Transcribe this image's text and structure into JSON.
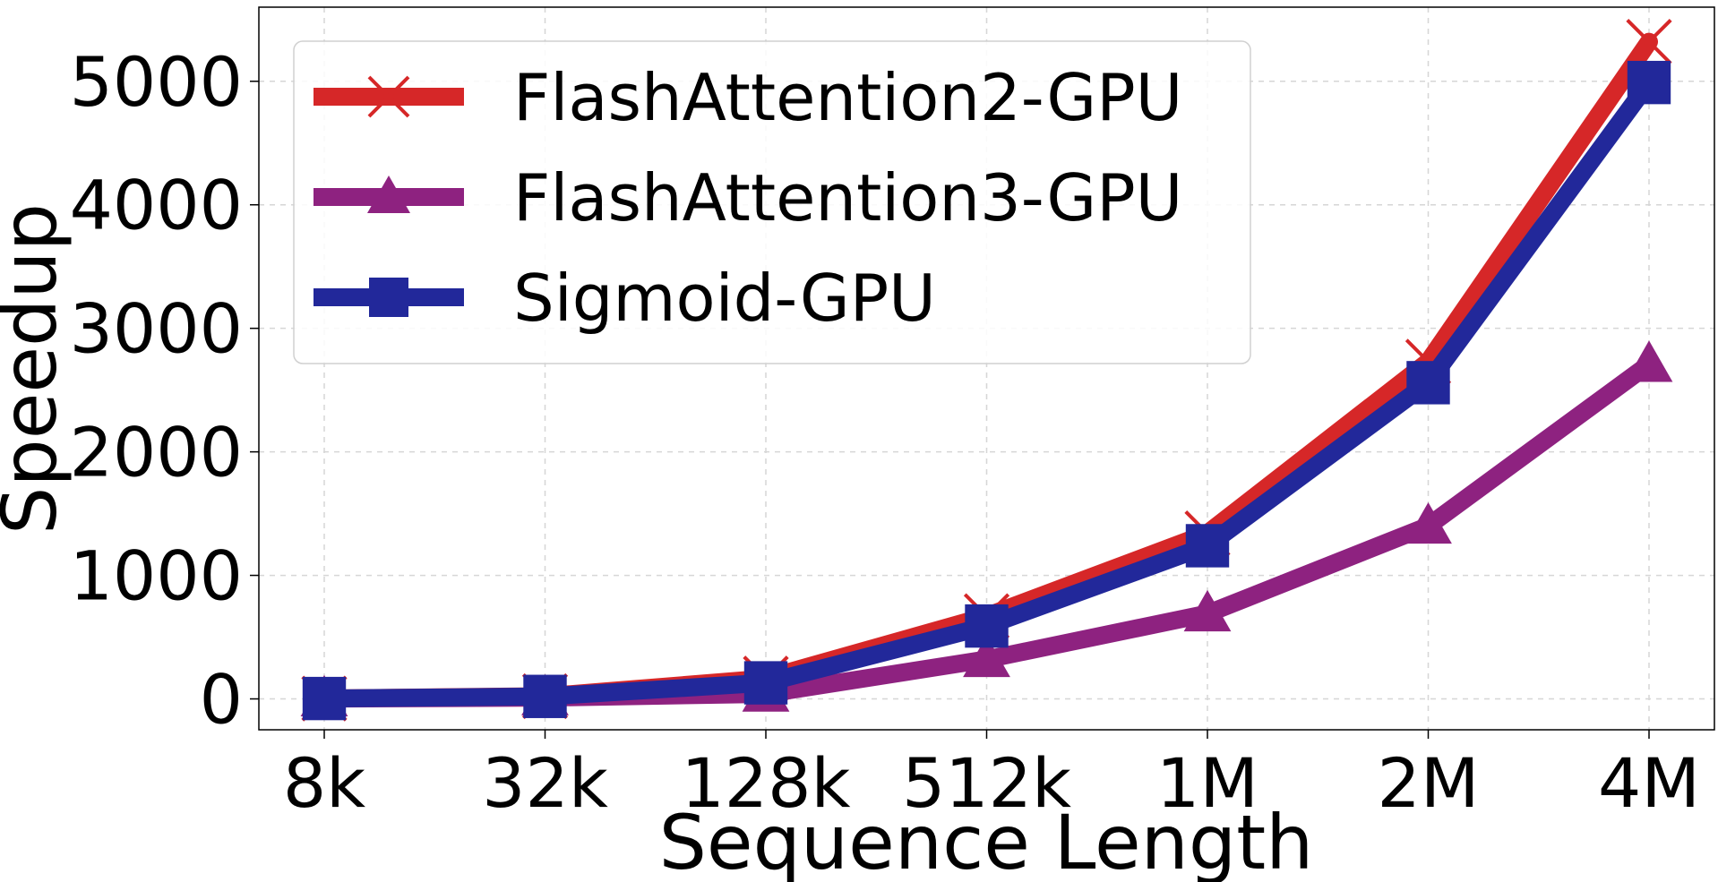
{
  "chart_data": {
    "type": "line",
    "title": "",
    "xlabel": "Sequence Length",
    "ylabel": "Speedup",
    "categories": [
      "8k",
      "32k",
      "128k",
      "512k",
      "1M",
      "2M",
      "4M"
    ],
    "yticks": [
      0,
      1000,
      2000,
      3000,
      4000,
      5000
    ],
    "ytick_labels": [
      "0",
      "1000",
      "2000",
      "3000",
      "4000",
      "5000"
    ],
    "ylim": [
      -250,
      5600
    ],
    "grid": true,
    "legend_position": "top-left",
    "series": [
      {
        "name": "FlashAttention2-GPU",
        "color": "#d62728",
        "marker": "x",
        "values": [
          3,
          22,
          165,
          670,
          1340,
          2730,
          5320
        ]
      },
      {
        "name": "FlashAttention3-GPU",
        "color": "#8e2280",
        "marker": "triangle",
        "values": [
          2,
          10,
          40,
          320,
          690,
          1400,
          2710
        ]
      },
      {
        "name": "Sigmoid-GPU",
        "color": "#22289a",
        "marker": "square",
        "values": [
          3,
          20,
          130,
          590,
          1240,
          2560,
          4990
        ]
      }
    ]
  }
}
